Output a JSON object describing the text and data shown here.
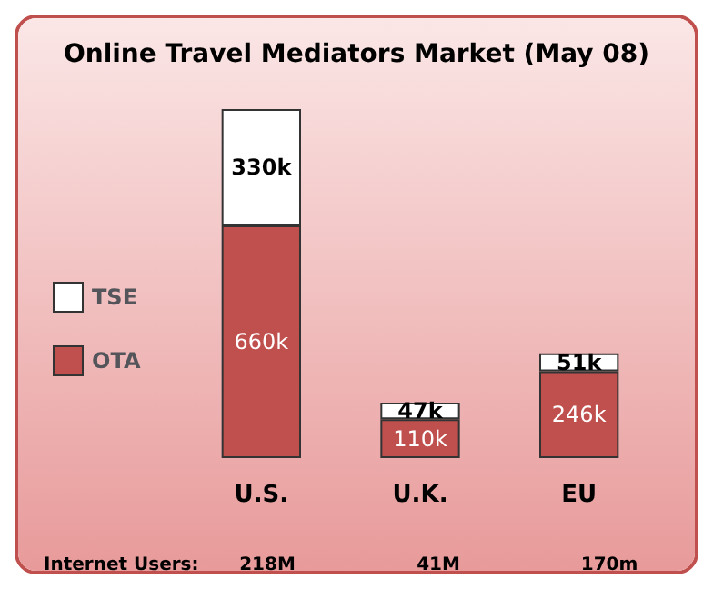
{
  "chart_data": {
    "type": "bar",
    "title": "Online Travel Mediators Market (May 08)",
    "categories": [
      "U.S.",
      "U.K.",
      "EU"
    ],
    "stacked": true,
    "tick_labels": "x",
    "grid": false,
    "legend": "left",
    "series": [
      {
        "name": "OTA",
        "color": "#c0504d",
        "values": [
          660,
          110,
          246
        ],
        "value_labels": [
          "660k",
          "110k",
          "246k"
        ]
      },
      {
        "name": "TSE",
        "color": "#ffffff",
        "values": [
          330,
          47,
          51
        ],
        "value_labels": [
          "330k",
          "47k",
          "51k"
        ]
      }
    ],
    "annotations": [
      "Internet Users:",
      "218M",
      "41M",
      "170m"
    ]
  }
}
